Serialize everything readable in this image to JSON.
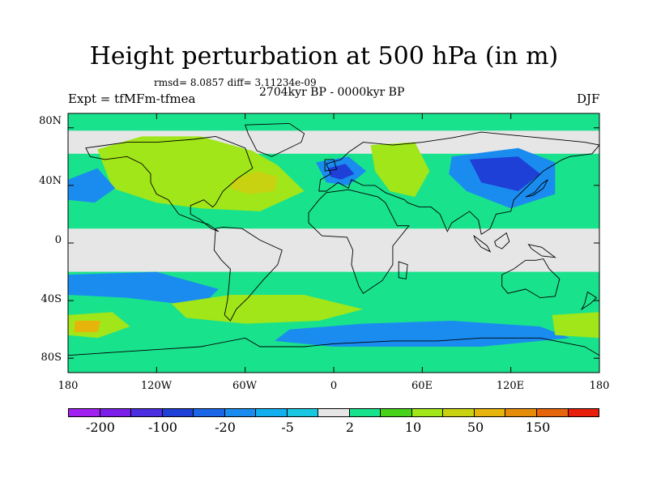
{
  "header": {
    "title": "Height perturbation at 500 hPa (in m)",
    "rmsd": "rmsd= 8.0857 diff= 3.11234e-09",
    "period": "2704kyr BP - 0000kyr BP",
    "experiment": "Expt = tfMFm-tfmea",
    "season": "DJF"
  },
  "axes": {
    "y_ticks": [
      "80N",
      "40N",
      "0",
      "40S",
      "80S"
    ],
    "x_ticks": [
      "180",
      "120W",
      "60W",
      "0",
      "60E",
      "120E",
      "180"
    ]
  },
  "colorbar": {
    "colors": [
      "#a020f0",
      "#7b1fe8",
      "#4b2ee0",
      "#1e40d6",
      "#1a66e6",
      "#1a8cf0",
      "#11aef0",
      "#19c8e0",
      "#e6e6e6",
      "#19e28c",
      "#46d219",
      "#a0e619",
      "#c8d210",
      "#e6b40a",
      "#e68c0a",
      "#e6640a",
      "#e61e0a"
    ],
    "labels": [
      "-200",
      "-100",
      "-20",
      "-5",
      "2",
      "10",
      "50",
      "150"
    ]
  },
  "regions": [
    {
      "id": "north-america-high",
      "fill": "#a0e619",
      "pts": [
        [
          -160,
          65
        ],
        [
          -130,
          74
        ],
        [
          -90,
          74
        ],
        [
          -55,
          64
        ],
        [
          -38,
          54
        ],
        [
          -20,
          36
        ],
        [
          -50,
          22
        ],
        [
          -90,
          24
        ],
        [
          -120,
          28
        ],
        [
          -150,
          38
        ]
      ]
    },
    {
      "id": "north-america-core",
      "fill": "#c8d210",
      "pts": [
        [
          -68,
          44
        ],
        [
          -52,
          50
        ],
        [
          -38,
          46
        ],
        [
          -40,
          36
        ],
        [
          -58,
          34
        ],
        [
          -70,
          38
        ]
      ]
    },
    {
      "id": "north-pacific-low",
      "fill": "#1a8cf0",
      "pts": [
        [
          -180,
          44
        ],
        [
          -160,
          52
        ],
        [
          -148,
          38
        ],
        [
          -162,
          28
        ],
        [
          -180,
          30
        ]
      ]
    },
    {
      "id": "europe-low",
      "fill": "#1a8cf0",
      "pts": [
        [
          -12,
          56
        ],
        [
          10,
          60
        ],
        [
          22,
          50
        ],
        [
          10,
          40
        ],
        [
          -5,
          42
        ]
      ]
    },
    {
      "id": "europe-core",
      "fill": "#1e40d6",
      "pts": [
        [
          -4,
          52
        ],
        [
          8,
          55
        ],
        [
          14,
          48
        ],
        [
          5,
          44
        ],
        [
          -2,
          46
        ]
      ]
    },
    {
      "id": "west-asia-high",
      "fill": "#a0e619",
      "pts": [
        [
          25,
          68
        ],
        [
          55,
          70
        ],
        [
          65,
          50
        ],
        [
          55,
          32
        ],
        [
          38,
          36
        ],
        [
          28,
          50
        ]
      ]
    },
    {
      "id": "siberia-low",
      "fill": "#1a8cf0",
      "pts": [
        [
          80,
          60
        ],
        [
          125,
          66
        ],
        [
          150,
          56
        ],
        [
          150,
          34
        ],
        [
          120,
          24
        ],
        [
          90,
          36
        ],
        [
          78,
          48
        ]
      ]
    },
    {
      "id": "siberia-core",
      "fill": "#1e40d6",
      "pts": [
        [
          92,
          58
        ],
        [
          125,
          60
        ],
        [
          140,
          48
        ],
        [
          125,
          36
        ],
        [
          100,
          42
        ]
      ]
    },
    {
      "id": "south-pacific-low",
      "fill": "#1a8cf0",
      "pts": [
        [
          -180,
          -22
        ],
        [
          -120,
          -20
        ],
        [
          -78,
          -32
        ],
        [
          -90,
          -44
        ],
        [
          -140,
          -38
        ],
        [
          -180,
          -36
        ]
      ]
    },
    {
      "id": "south-atlantic-high",
      "fill": "#a0e619",
      "pts": [
        [
          -110,
          -42
        ],
        [
          -70,
          -36
        ],
        [
          -20,
          -36
        ],
        [
          20,
          -46
        ],
        [
          -10,
          -54
        ],
        [
          -60,
          -56
        ],
        [
          -100,
          -52
        ]
      ]
    },
    {
      "id": "southern-ocean-low",
      "fill": "#1a8cf0",
      "pts": [
        [
          -30,
          -60
        ],
        [
          20,
          -56
        ],
        [
          80,
          -54
        ],
        [
          140,
          -58
        ],
        [
          160,
          -66
        ],
        [
          100,
          -72
        ],
        [
          0,
          -72
        ],
        [
          -40,
          -68
        ]
      ]
    },
    {
      "id": "south-pacific-high",
      "fill": "#a0e619",
      "pts": [
        [
          -180,
          -50
        ],
        [
          -150,
          -48
        ],
        [
          -138,
          -58
        ],
        [
          -160,
          -66
        ],
        [
          -180,
          -64
        ]
      ]
    },
    {
      "id": "south-pacific-core",
      "fill": "#e6b40a",
      "pts": [
        [
          -175,
          -54
        ],
        [
          -158,
          -54
        ],
        [
          -160,
          -62
        ],
        [
          -176,
          -62
        ]
      ]
    },
    {
      "id": "far-east-high",
      "fill": "#a0e619",
      "pts": [
        [
          148,
          -50
        ],
        [
          180,
          -48
        ],
        [
          180,
          -66
        ],
        [
          150,
          -64
        ]
      ]
    }
  ],
  "land": [
    {
      "id": "north-america",
      "pts": [
        [
          -168,
          66
        ],
        [
          -140,
          70
        ],
        [
          -120,
          70
        ],
        [
          -95,
          72
        ],
        [
          -80,
          74
        ],
        [
          -60,
          66
        ],
        [
          -55,
          52
        ],
        [
          -65,
          45
        ],
        [
          -75,
          36
        ],
        [
          -80,
          27
        ],
        [
          -82,
          25
        ],
        [
          -88,
          30
        ],
        [
          -97,
          26
        ],
        [
          -97,
          20
        ],
        [
          -90,
          16
        ],
        [
          -83,
          10
        ],
        [
          -78,
          8
        ],
        [
          -85,
          13
        ],
        [
          -95,
          16
        ],
        [
          -105,
          20
        ],
        [
          -112,
          30
        ],
        [
          -120,
          34
        ],
        [
          -124,
          42
        ],
        [
          -124,
          48
        ],
        [
          -130,
          55
        ],
        [
          -140,
          60
        ],
        [
          -155,
          58
        ],
        [
          -165,
          60
        ]
      ]
    },
    {
      "id": "greenland",
      "pts": [
        [
          -60,
          82
        ],
        [
          -30,
          83
        ],
        [
          -20,
          76
        ],
        [
          -22,
          70
        ],
        [
          -42,
          60
        ],
        [
          -52,
          64
        ],
        [
          -58,
          76
        ]
      ]
    },
    {
      "id": "south-america",
      "pts": [
        [
          -80,
          10
        ],
        [
          -75,
          11
        ],
        [
          -62,
          10
        ],
        [
          -50,
          2
        ],
        [
          -35,
          -5
        ],
        [
          -38,
          -15
        ],
        [
          -48,
          -26
        ],
        [
          -58,
          -38
        ],
        [
          -66,
          -46
        ],
        [
          -70,
          -54
        ],
        [
          -74,
          -50
        ],
        [
          -72,
          -40
        ],
        [
          -71,
          -30
        ],
        [
          -70,
          -18
        ],
        [
          -76,
          -12
        ],
        [
          -81,
          -5
        ]
      ]
    },
    {
      "id": "africa",
      "pts": [
        [
          -17,
          21
        ],
        [
          -10,
          30
        ],
        [
          -5,
          35
        ],
        [
          10,
          37
        ],
        [
          30,
          32
        ],
        [
          35,
          28
        ],
        [
          43,
          12
        ],
        [
          51,
          12
        ],
        [
          40,
          -2
        ],
        [
          40,
          -15
        ],
        [
          33,
          -26
        ],
        [
          20,
          -35
        ],
        [
          17,
          -30
        ],
        [
          12,
          -15
        ],
        [
          13,
          -5
        ],
        [
          9,
          4
        ],
        [
          -8,
          5
        ],
        [
          -17,
          14
        ]
      ]
    },
    {
      "id": "eurasia",
      "pts": [
        [
          -10,
          36
        ],
        [
          -9,
          44
        ],
        [
          -2,
          48
        ],
        [
          -5,
          55
        ],
        [
          5,
          58
        ],
        [
          10,
          63
        ],
        [
          20,
          70
        ],
        [
          40,
          68
        ],
        [
          60,
          70
        ],
        [
          80,
          73
        ],
        [
          100,
          77
        ],
        [
          140,
          73
        ],
        [
          170,
          70
        ],
        [
          180,
          68
        ],
        [
          175,
          62
        ],
        [
          160,
          60
        ],
        [
          155,
          58
        ],
        [
          142,
          50
        ],
        [
          135,
          43
        ],
        [
          128,
          36
        ],
        [
          122,
          30
        ],
        [
          120,
          22
        ],
        [
          110,
          20
        ],
        [
          106,
          10
        ],
        [
          100,
          6
        ],
        [
          98,
          16
        ],
        [
          92,
          22
        ],
        [
          80,
          14
        ],
        [
          77,
          8
        ],
        [
          72,
          20
        ],
        [
          66,
          25
        ],
        [
          58,
          25
        ],
        [
          50,
          28
        ],
        [
          48,
          30
        ],
        [
          35,
          35
        ],
        [
          28,
          40
        ],
        [
          20,
          40
        ],
        [
          12,
          44
        ],
        [
          10,
          38
        ],
        [
          3,
          42
        ],
        [
          -5,
          36
        ]
      ]
    },
    {
      "id": "australia",
      "pts": [
        [
          114,
          -22
        ],
        [
          122,
          -18
        ],
        [
          130,
          -12
        ],
        [
          137,
          -12
        ],
        [
          142,
          -11
        ],
        [
          146,
          -18
        ],
        [
          153,
          -25
        ],
        [
          150,
          -37
        ],
        [
          140,
          -38
        ],
        [
          130,
          -32
        ],
        [
          118,
          -35
        ],
        [
          114,
          -30
        ]
      ]
    },
    {
      "id": "antarctica",
      "pts": [
        [
          -180,
          -78
        ],
        [
          -150,
          -76
        ],
        [
          -120,
          -74
        ],
        [
          -90,
          -72
        ],
        [
          -60,
          -66
        ],
        [
          -50,
          -72
        ],
        [
          -20,
          -72
        ],
        [
          0,
          -70
        ],
        [
          40,
          -68
        ],
        [
          70,
          -68
        ],
        [
          100,
          -66
        ],
        [
          140,
          -66
        ],
        [
          170,
          -72
        ],
        [
          180,
          -78
        ],
        [
          180,
          -90
        ],
        [
          -180,
          -90
        ]
      ]
    },
    {
      "id": "madagascar",
      "pts": [
        [
          44,
          -13
        ],
        [
          50,
          -15
        ],
        [
          49,
          -25
        ],
        [
          44,
          -24
        ]
      ]
    },
    {
      "id": "japan",
      "pts": [
        [
          130,
          32
        ],
        [
          136,
          35
        ],
        [
          141,
          41
        ],
        [
          145,
          44
        ],
        [
          142,
          38
        ],
        [
          135,
          33
        ]
      ]
    },
    {
      "id": "britain",
      "pts": [
        [
          -6,
          50
        ],
        [
          2,
          51
        ],
        [
          0,
          58
        ],
        [
          -6,
          58
        ]
      ]
    },
    {
      "id": "borneo",
      "pts": [
        [
          109,
          1
        ],
        [
          117,
          7
        ],
        [
          119,
          1
        ],
        [
          114,
          -4
        ],
        [
          110,
          -2
        ]
      ]
    },
    {
      "id": "sumatra",
      "pts": [
        [
          95,
          5
        ],
        [
          104,
          -2
        ],
        [
          106,
          -6
        ],
        [
          100,
          -3
        ],
        [
          96,
          2
        ]
      ]
    },
    {
      "id": "new-guinea",
      "pts": [
        [
          132,
          -1
        ],
        [
          141,
          -3
        ],
        [
          150,
          -10
        ],
        [
          141,
          -9
        ],
        [
          134,
          -4
        ]
      ]
    },
    {
      "id": "new-zealand",
      "pts": [
        [
          172,
          -34
        ],
        [
          178,
          -38
        ],
        [
          174,
          -42
        ],
        [
          168,
          -46
        ],
        [
          170,
          -42
        ]
      ]
    }
  ]
}
